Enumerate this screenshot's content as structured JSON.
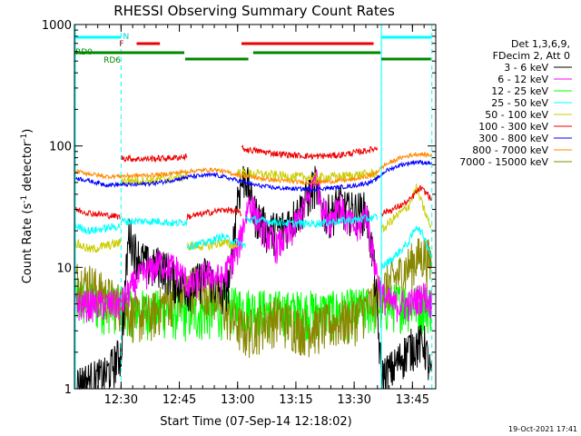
{
  "chart_data": {
    "type": "line",
    "title": "RHESSI Observing Summary Count Rates",
    "xlabel": "Start Time (07-Sep-14 12:18:02)",
    "ylabel_main": "Count Rate (s",
    "ylabel_sup1": "-1",
    "ylabel_mid": " detector",
    "ylabel_sup2": "-1",
    "ylabel_end": ")",
    "yscale": "log",
    "ylim": [
      1,
      1000
    ],
    "xlim_min": [
      0,
      93
    ],
    "y_ticks": [
      {
        "value": 1,
        "label": "1"
      },
      {
        "value": 10,
        "label": "10"
      },
      {
        "value": 100,
        "label": "100"
      },
      {
        "value": 1000,
        "label": "1000"
      }
    ],
    "x_ticks": [
      {
        "t": 12,
        "label": "12:30"
      },
      {
        "t": 27,
        "label": "12:45"
      },
      {
        "t": 42,
        "label": "13:00"
      },
      {
        "t": 57,
        "label": "13:15"
      },
      {
        "t": 72,
        "label": "13:30"
      },
      {
        "t": 87,
        "label": "13:45"
      }
    ],
    "legend_header": [
      "Det 1,3,6,9,",
      "FDecim 2, Att 0"
    ],
    "legend": [
      {
        "label": "3 - 6 keV",
        "color": "#000000"
      },
      {
        "label": "6 - 12 keV",
        "color": "#ff00ff"
      },
      {
        "label": "12 - 25 keV",
        "color": "#00ff00"
      },
      {
        "label": "25 - 50 keV",
        "color": "#00ffff"
      },
      {
        "label": "50 - 100 keV",
        "color": "#cccc00"
      },
      {
        "label": "100 - 300 keV",
        "color": "#ee0000"
      },
      {
        "label": "300 - 800 keV",
        "color": "#0000ff"
      },
      {
        "label": "800 - 7000 keV",
        "color": "#ff8800"
      },
      {
        "label": "7000 - 15000 keV",
        "color": "#888800"
      }
    ],
    "night_lines_min": [
      12,
      79,
      92
    ],
    "night_bar_color": "#00ffff",
    "night_label": "N",
    "flare_label": "F",
    "saa_label": "RD0",
    "rd6_label": "RD6",
    "night_bars_min": [
      [
        0,
        12
      ],
      [
        79,
        92
      ]
    ],
    "flare_bars_min": [
      [
        16,
        22
      ],
      [
        43,
        77
      ]
    ],
    "rd0_bars_min": [
      [
        0,
        28.5
      ],
      [
        28.5,
        45
      ],
      [
        46,
        79
      ],
      [
        79,
        92
      ]
    ],
    "series_data": {
      "orange": [
        [
          0,
          62
        ],
        [
          8,
          56
        ],
        [
          16,
          57
        ],
        [
          22,
          58
        ],
        [
          30,
          62
        ],
        [
          36,
          64
        ],
        [
          42,
          58
        ],
        [
          46,
          55
        ],
        [
          52,
          52
        ],
        [
          60,
          50
        ],
        [
          66,
          51
        ],
        [
          72,
          53
        ],
        [
          77,
          58
        ],
        [
          80,
          70
        ],
        [
          84,
          80
        ],
        [
          88,
          86
        ],
        [
          92,
          84
        ]
      ],
      "blue": [
        [
          0,
          55
        ],
        [
          8,
          48
        ],
        [
          16,
          48
        ],
        [
          22,
          50
        ],
        [
          30,
          56
        ],
        [
          36,
          58
        ],
        [
          42,
          52
        ],
        [
          46,
          48
        ],
        [
          52,
          45
        ],
        [
          60,
          44
        ],
        [
          66,
          45
        ],
        [
          72,
          47
        ],
        [
          77,
          51
        ],
        [
          80,
          62
        ],
        [
          84,
          70
        ],
        [
          88,
          74
        ],
        [
          92,
          72
        ]
      ],
      "red_low": [
        [
          0,
          30
        ],
        [
          4,
          28
        ],
        [
          8,
          27
        ],
        [
          12,
          26
        ]
      ],
      "red_high1": [
        [
          12,
          80
        ],
        [
          16,
          78
        ],
        [
          22,
          79
        ],
        [
          26,
          80
        ],
        [
          29,
          82
        ]
      ],
      "red_low2": [
        [
          29,
          26
        ],
        [
          34,
          28
        ],
        [
          39,
          30
        ],
        [
          43,
          28
        ]
      ],
      "red_high2": [
        [
          43,
          95
        ],
        [
          50,
          88
        ],
        [
          56,
          84
        ],
        [
          62,
          82
        ],
        [
          68,
          84
        ],
        [
          74,
          90
        ],
        [
          78,
          96
        ]
      ],
      "red_tail": [
        [
          79,
          28
        ],
        [
          82,
          30
        ],
        [
          86,
          35
        ],
        [
          89,
          45
        ],
        [
          91,
          40
        ],
        [
          92,
          35
        ]
      ],
      "cyan_low": [
        [
          0,
          22
        ],
        [
          4,
          20
        ],
        [
          8,
          21
        ],
        [
          12,
          22
        ]
      ],
      "cyan_mid1": [
        [
          12,
          24
        ],
        [
          18,
          24
        ],
        [
          22,
          24
        ],
        [
          26,
          23
        ],
        [
          29,
          24
        ]
      ],
      "cyan_low2": [
        [
          29,
          15
        ],
        [
          34,
          16
        ],
        [
          38,
          18
        ],
        [
          42,
          16
        ],
        [
          44,
          15
        ]
      ],
      "cyan_mid2": [
        [
          44,
          25
        ],
        [
          50,
          24
        ],
        [
          56,
          23
        ],
        [
          62,
          23
        ],
        [
          68,
          24
        ],
        [
          74,
          25
        ],
        [
          78,
          26
        ]
      ],
      "cyan_tail": [
        [
          79,
          10
        ],
        [
          82,
          12
        ],
        [
          86,
          16
        ],
        [
          88,
          22
        ],
        [
          90,
          18
        ],
        [
          92,
          12
        ]
      ],
      "yellow_low": [
        [
          0,
          16
        ],
        [
          4,
          14
        ],
        [
          8,
          15
        ],
        [
          12,
          16
        ]
      ],
      "yellow_high": [
        [
          12,
          52
        ],
        [
          18,
          52
        ],
        [
          22,
          53
        ],
        [
          26,
          55
        ],
        [
          29,
          56
        ]
      ],
      "yellow_low2": [
        [
          29,
          15
        ],
        [
          34,
          15
        ],
        [
          38,
          16
        ],
        [
          42,
          15
        ]
      ],
      "yellow_high2": [
        [
          42,
          60
        ],
        [
          50,
          58
        ],
        [
          56,
          56
        ],
        [
          62,
          55
        ],
        [
          68,
          56
        ],
        [
          74,
          58
        ],
        [
          78,
          60
        ]
      ],
      "yellow_tail": [
        [
          79,
          20
        ],
        [
          82,
          25
        ],
        [
          86,
          32
        ],
        [
          88,
          45
        ],
        [
          90,
          30
        ],
        [
          92,
          20
        ]
      ],
      "magenta": [
        [
          0,
          5
        ],
        [
          4,
          5
        ],
        [
          8,
          5
        ],
        [
          12,
          5
        ],
        [
          16,
          8
        ],
        [
          22,
          11
        ],
        [
          26,
          10
        ],
        [
          30,
          7
        ],
        [
          34,
          9
        ],
        [
          38,
          8
        ],
        [
          42,
          14
        ],
        [
          45,
          36
        ],
        [
          48,
          22
        ],
        [
          52,
          15
        ],
        [
          56,
          20
        ],
        [
          60,
          35
        ],
        [
          62,
          60
        ],
        [
          64,
          30
        ],
        [
          66,
          25
        ],
        [
          68,
          35
        ],
        [
          70,
          25
        ],
        [
          73,
          20
        ],
        [
          75,
          30
        ],
        [
          77,
          12
        ],
        [
          79,
          6
        ],
        [
          82,
          5
        ],
        [
          86,
          5
        ],
        [
          90,
          6
        ],
        [
          92,
          5
        ]
      ],
      "black": [
        [
          0,
          1.1
        ],
        [
          4,
          1.2
        ],
        [
          8,
          1.3
        ],
        [
          12,
          2
        ],
        [
          14,
          20
        ],
        [
          16,
          13
        ],
        [
          20,
          10
        ],
        [
          22,
          11
        ],
        [
          26,
          8
        ],
        [
          30,
          7
        ],
        [
          34,
          9
        ],
        [
          38,
          6
        ],
        [
          40,
          8
        ],
        [
          42,
          40
        ],
        [
          44,
          60
        ],
        [
          46,
          30
        ],
        [
          50,
          20
        ],
        [
          54,
          22
        ],
        [
          58,
          30
        ],
        [
          62,
          50
        ],
        [
          64,
          30
        ],
        [
          66,
          28
        ],
        [
          68,
          35
        ],
        [
          70,
          30
        ],
        [
          73,
          30
        ],
        [
          75,
          30
        ],
        [
          77,
          12
        ],
        [
          79,
          1.3
        ],
        [
          82,
          1.5
        ],
        [
          86,
          2.2
        ],
        [
          90,
          2.5
        ],
        [
          92,
          1.2
        ]
      ],
      "green": [
        [
          0,
          5.5
        ],
        [
          6,
          5
        ],
        [
          12,
          5
        ],
        [
          18,
          4.5
        ],
        [
          24,
          4.5
        ],
        [
          30,
          4.2
        ],
        [
          36,
          4.4
        ],
        [
          42,
          4.8
        ],
        [
          48,
          4.6
        ],
        [
          54,
          4.4
        ],
        [
          60,
          4.5
        ],
        [
          66,
          4.4
        ],
        [
          72,
          4.6
        ],
        [
          78,
          4.8
        ],
        [
          84,
          5.2
        ],
        [
          90,
          5
        ],
        [
          92,
          5
        ]
      ],
      "olive": [
        [
          0,
          8
        ],
        [
          4,
          7.5
        ],
        [
          8,
          6
        ],
        [
          12,
          5
        ],
        [
          16,
          4
        ],
        [
          20,
          4.2
        ],
        [
          24,
          5.5
        ],
        [
          28,
          6.5
        ],
        [
          32,
          7.5
        ],
        [
          36,
          6
        ],
        [
          40,
          4
        ],
        [
          44,
          3
        ],
        [
          48,
          3.5
        ],
        [
          52,
          4
        ],
        [
          56,
          3.5
        ],
        [
          60,
          3.2
        ],
        [
          64,
          3.4
        ],
        [
          68,
          3.6
        ],
        [
          72,
          4
        ],
        [
          76,
          5
        ],
        [
          80,
          7
        ],
        [
          84,
          9
        ],
        [
          88,
          12
        ],
        [
          90,
          13
        ],
        [
          92,
          11
        ]
      ]
    },
    "footer_date": "19-Oct-2021 17:41"
  }
}
